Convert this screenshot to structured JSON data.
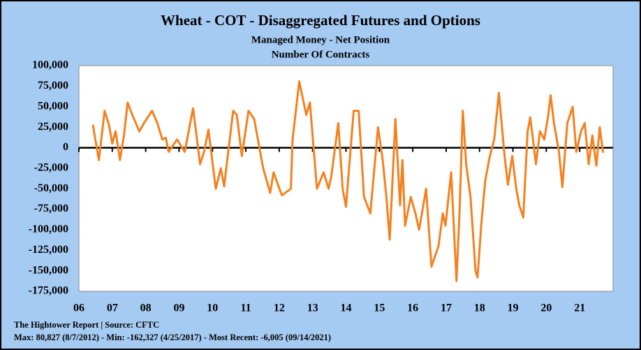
{
  "chart_data": {
    "type": "line",
    "title": "Wheat - COT - Disaggregated Futures and Options",
    "subtitle": "Managed Money - Net Position",
    "y_label": "Number Of Contracts",
    "source": "The Hightower Report | Source: CFTC",
    "annotation": "Max: 80,827 (8/7/2012)  -  Min: -162,327 (4/25/2017) - Most Recent: -6,005 (09/14/2021)",
    "xlim": [
      2006,
      2022
    ],
    "ylim": [
      -175000,
      100000
    ],
    "grid": false,
    "xticks": [
      {
        "value": 2006,
        "label": "06"
      },
      {
        "value": 2007,
        "label": "07"
      },
      {
        "value": 2008,
        "label": "08"
      },
      {
        "value": 2009,
        "label": "09"
      },
      {
        "value": 2010,
        "label": "10"
      },
      {
        "value": 2011,
        "label": "11"
      },
      {
        "value": 2012,
        "label": "12"
      },
      {
        "value": 2013,
        "label": "13"
      },
      {
        "value": 2014,
        "label": "14"
      },
      {
        "value": 2015,
        "label": "15"
      },
      {
        "value": 2016,
        "label": "16"
      },
      {
        "value": 2017,
        "label": "17"
      },
      {
        "value": 2018,
        "label": "18"
      },
      {
        "value": 2019,
        "label": "19"
      },
      {
        "value": 2020,
        "label": "20"
      },
      {
        "value": 2021,
        "label": "21"
      }
    ],
    "yticks": [
      {
        "value": 100000,
        "label": "100,000"
      },
      {
        "value": 75000,
        "label": "75,000"
      },
      {
        "value": 50000,
        "label": "50,000"
      },
      {
        "value": 25000,
        "label": "25,000"
      },
      0,
      {
        "value": -25000,
        "label": "-25,000"
      },
      {
        "value": -50000,
        "label": "-50,000"
      },
      {
        "value": -75000,
        "label": "-75,000"
      },
      {
        "value": -100000,
        "label": "-100,000"
      },
      {
        "value": -125000,
        "label": "-125,000"
      },
      {
        "value": -150000,
        "label": "-150,000"
      },
      {
        "value": -175000,
        "label": "-175,000"
      }
    ],
    "series": [
      {
        "color": "#f5801e",
        "x": [
          2006.42,
          2006.5,
          2006.6,
          2006.77,
          2006.9,
          2007.0,
          2007.1,
          2007.23,
          2007.35,
          2007.46,
          2007.6,
          2007.81,
          2007.95,
          2008.19,
          2008.35,
          2008.5,
          2008.6,
          2008.69,
          2008.94,
          2009.17,
          2009.42,
          2009.63,
          2009.75,
          2009.88,
          2010.1,
          2010.25,
          2010.35,
          2010.62,
          2010.73,
          2010.88,
          2011.08,
          2011.25,
          2011.52,
          2011.73,
          2011.83,
          2012.08,
          2012.35,
          2012.4,
          2012.6,
          2012.81,
          2012.92,
          2013.13,
          2013.33,
          2013.48,
          2013.56,
          2013.77,
          2013.9,
          2014.0,
          2014.23,
          2014.38,
          2014.54,
          2014.73,
          2014.96,
          2015.1,
          2015.21,
          2015.31,
          2015.48,
          2015.62,
          2015.69,
          2015.77,
          2015.94,
          2016.08,
          2016.19,
          2016.4,
          2016.56,
          2016.77,
          2016.9,
          2016.98,
          2017.15,
          2017.31,
          2017.4,
          2017.5,
          2017.6,
          2017.73,
          2017.88,
          2017.94,
          2018.06,
          2018.17,
          2018.31,
          2018.44,
          2018.58,
          2018.75,
          2018.85,
          2018.98,
          2019.1,
          2019.19,
          2019.31,
          2019.44,
          2019.52,
          2019.69,
          2019.81,
          2019.94,
          2020.06,
          2020.13,
          2020.23,
          2020.38,
          2020.48,
          2020.63,
          2020.79,
          2020.9,
          2021.04,
          2021.15,
          2021.27,
          2021.38,
          2021.5,
          2021.6,
          2021.7
        ],
        "values": [
          28000,
          8000,
          -15000,
          45000,
          28000,
          5000,
          20000,
          -15000,
          15000,
          55000,
          40000,
          20000,
          30000,
          45000,
          30000,
          10000,
          12000,
          -5000,
          10000,
          -5000,
          48000,
          -20000,
          -5000,
          22000,
          -50000,
          -25000,
          -47000,
          45000,
          40000,
          -10000,
          45000,
          35000,
          -25000,
          -55000,
          -30000,
          -58000,
          -50000,
          10000,
          80827,
          40000,
          55000,
          -50000,
          -30000,
          -50000,
          -35000,
          30000,
          -50000,
          -72000,
          45000,
          45000,
          -60000,
          -80000,
          25000,
          -15000,
          -60000,
          -112000,
          35000,
          -70000,
          -15000,
          -95000,
          -60000,
          -80000,
          -100000,
          -50000,
          -145000,
          -120000,
          -80000,
          -95000,
          -30000,
          -162327,
          -80000,
          45000,
          -20000,
          -60000,
          -150000,
          -158000,
          -90000,
          -40000,
          -10000,
          10000,
          67000,
          -10000,
          -45000,
          -10000,
          -50000,
          -70000,
          -85000,
          20000,
          37000,
          -20000,
          20000,
          10000,
          40000,
          64000,
          30000,
          -5000,
          -48000,
          30000,
          50000,
          -5000,
          20000,
          30000,
          -20000,
          15000,
          -22000,
          25000,
          -6005
        ]
      }
    ]
  }
}
